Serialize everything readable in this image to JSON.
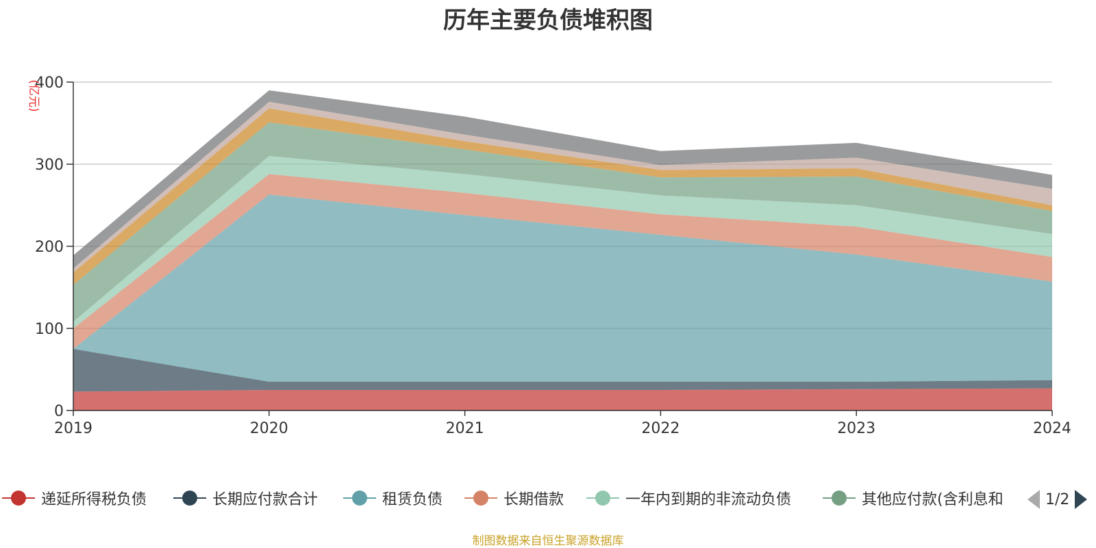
{
  "chart_data": {
    "type": "area",
    "stacked": true,
    "title": "历年主要负债堆积图",
    "unit_label": "(亿元)",
    "x": [
      "2019",
      "2020",
      "2021",
      "2022",
      "2023",
      "2024"
    ],
    "ylim": [
      0,
      400
    ],
    "yticks": [
      0,
      100,
      200,
      300,
      400
    ],
    "grid": true,
    "legend_position": "bottom",
    "legend_page": "1/2",
    "series": [
      {
        "name": "递延所得税负债",
        "color": "#c23531",
        "values": [
          23,
          25,
          25,
          25,
          26,
          27
        ]
      },
      {
        "name": "长期应付款合计",
        "color": "#2f4554",
        "values": [
          52,
          10,
          10,
          10,
          9,
          10
        ]
      },
      {
        "name": "租赁负债",
        "color": "#61a0a8",
        "values": [
          0,
          228,
          203,
          179,
          155,
          120
        ]
      },
      {
        "name": "长期借款",
        "color": "#d48265",
        "values": [
          25,
          25,
          27,
          25,
          34,
          30
        ]
      },
      {
        "name": "一年内到期的非流动负债",
        "color": "#91c7ae",
        "values": [
          8,
          22,
          23,
          23,
          26,
          28
        ]
      },
      {
        "name": "其他应付款(含利息和股利)",
        "color": "#749f83",
        "values": [
          45,
          41,
          30,
          22,
          35,
          28
        ]
      },
      {
        "name": "",
        "color": "#ca8622",
        "values": [
          15,
          17,
          10,
          9,
          10,
          7
        ]
      },
      {
        "name": "",
        "color": "#bda29a",
        "values": [
          5,
          8,
          8,
          6,
          13,
          20
        ]
      },
      {
        "name": "",
        "color": "#6e7074",
        "values": [
          16,
          14,
          22,
          17,
          18,
          17
        ]
      }
    ]
  },
  "legend": [
    {
      "label": "递延所得税负债",
      "color": "#c23531"
    },
    {
      "label": "长期应付款合计",
      "color": "#2f4554"
    },
    {
      "label": "租赁负债",
      "color": "#61a0a8"
    },
    {
      "label": "长期借款",
      "color": "#d48265"
    },
    {
      "label": "一年内到期的非流动负债",
      "color": "#91c7ae"
    },
    {
      "label": "其他应付款(含利息和",
      "color": "#749f83"
    }
  ],
  "source": {
    "text": "制图数据来自恒生聚源数据库",
    "color": "#c9a227"
  },
  "unit_color": "#e83030"
}
